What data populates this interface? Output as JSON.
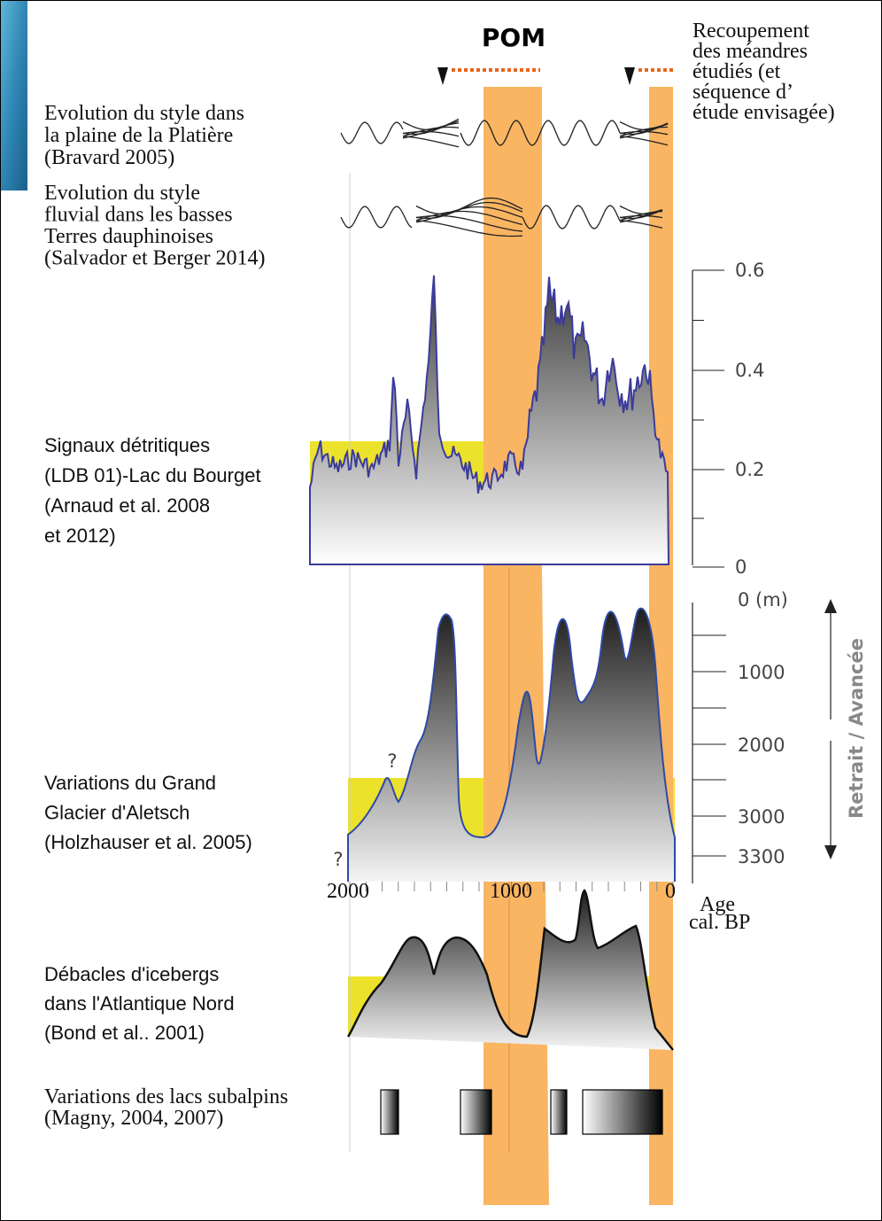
{
  "header": {
    "pom": "POM",
    "recoupement": [
      "Recoupement",
      "des méandres",
      "étudiés (et",
      "séquence d’",
      "étude envisagée)"
    ]
  },
  "rows": [
    {
      "lines": [
        "Evolution du style dans",
        "la plaine de la Platière",
        "(Bravard 2005)"
      ]
    },
    {
      "lines": [
        "Evolution du style",
        "fluvial dans les basses",
        "Terres dauphinoises",
        "(Salvador et Berger 2014)"
      ]
    },
    {
      "lines": [
        "Signaux détritiques",
        "(LDB 01)-Lac du Bourget",
        "(Arnaud et al. 2008",
        "et 2012)"
      ]
    },
    {
      "lines": [
        "Variations du Grand",
        "Glacier d'Aletsch",
        "(Holzhauser et al. 2005)"
      ]
    },
    {
      "lines": [
        "Débacles d'icebergs",
        "dans l'Atlantique Nord",
        "(Bond et al.. 2001)"
      ]
    },
    {
      "lines": [
        "Variations des lacs subalpins",
        "(Magny, 2004, 2007)"
      ]
    }
  ],
  "detritic_axis": {
    "ticks": [
      0.6,
      0.4,
      0.2,
      0
    ]
  },
  "glacier_axis": {
    "ticks": [
      "0 (m)",
      1000,
      2000,
      3000,
      3300
    ],
    "arrow_label": "Retrait / Avancée",
    "question_marks": [
      "?",
      "?"
    ]
  },
  "age_axis": {
    "ticks": [
      2000,
      1000,
      0
    ],
    "label_lines": [
      "Age",
      "cal. BP"
    ]
  }
}
